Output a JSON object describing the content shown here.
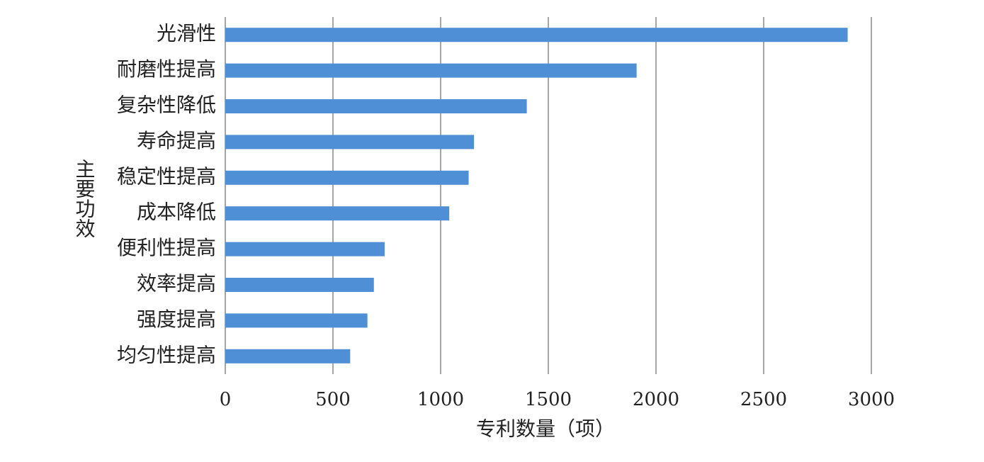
{
  "chart_data": {
    "type": "barh",
    "categories": [
      "光滑性",
      "耐磨性提高",
      "复杂性降低",
      "寿命提高",
      "稳定性提高",
      "成本降低",
      "便利性提高",
      "效率提高",
      "强度提高",
      "均匀性提高"
    ],
    "values": [
      2890,
      1910,
      1400,
      1155,
      1130,
      1040,
      740,
      690,
      660,
      580
    ],
    "color": "#4f8fd6",
    "xlim": [
      0,
      3000
    ],
    "xticks": [
      0,
      500,
      1000,
      1500,
      2000,
      2500,
      3000
    ],
    "x_label": "专利数量（项）",
    "y_label": "主要功效",
    "grid": true
  }
}
